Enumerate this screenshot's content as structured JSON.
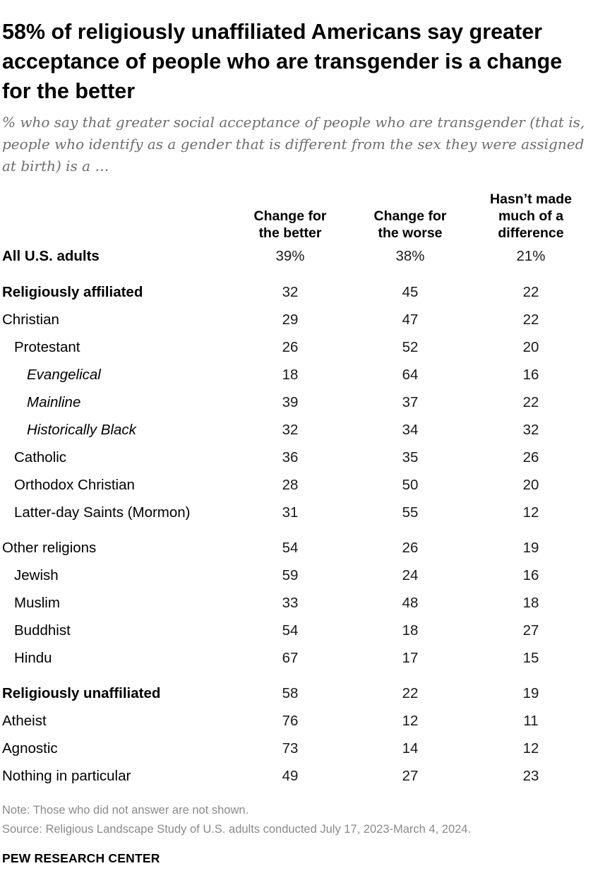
{
  "title": "58% of religiously unaffiliated Americans say greater acceptance of people who are transgender is a change for the better",
  "subtitle": "% who say that greater social acceptance of people who are transgender (that is, people who identify as a gender that is different from the sex they were assigned at birth) is a …",
  "chart_data": {
    "type": "table",
    "columns": [
      [
        "Change for",
        "the better"
      ],
      [
        "Change for",
        "the worse"
      ],
      [
        "Hasn’t made",
        "much of a",
        "difference"
      ]
    ],
    "rows": [
      {
        "label": "All U.S. adults",
        "style": "bold",
        "indent": 0,
        "values": [
          "39%",
          "38%",
          "21%"
        ]
      },
      {
        "label": "Religiously affiliated",
        "style": "bold",
        "indent": 0,
        "values": [
          "32",
          "45",
          "22"
        ]
      },
      {
        "label": "Christian",
        "style": "normal",
        "indent": 0,
        "values": [
          "29",
          "47",
          "22"
        ]
      },
      {
        "label": "Protestant",
        "style": "normal",
        "indent": 1,
        "values": [
          "26",
          "52",
          "20"
        ]
      },
      {
        "label": "Evangelical",
        "style": "italic",
        "indent": 2,
        "values": [
          "18",
          "64",
          "16"
        ]
      },
      {
        "label": "Mainline",
        "style": "italic",
        "indent": 2,
        "values": [
          "39",
          "37",
          "22"
        ]
      },
      {
        "label": "Historically Black",
        "style": "italic",
        "indent": 2,
        "values": [
          "32",
          "34",
          "32"
        ]
      },
      {
        "label": "Catholic",
        "style": "normal",
        "indent": 1,
        "values": [
          "36",
          "35",
          "26"
        ]
      },
      {
        "label": "Orthodox Christian",
        "style": "normal",
        "indent": 1,
        "values": [
          "28",
          "50",
          "20"
        ]
      },
      {
        "label": "Latter-day Saints (Mormon)",
        "style": "normal",
        "indent": 1,
        "values": [
          "31",
          "55",
          "12"
        ]
      },
      {
        "label": "Other religions",
        "style": "normal",
        "indent": 0,
        "values": [
          "54",
          "26",
          "19"
        ]
      },
      {
        "label": "Jewish",
        "style": "normal",
        "indent": 1,
        "values": [
          "59",
          "24",
          "16"
        ]
      },
      {
        "label": "Muslim",
        "style": "normal",
        "indent": 1,
        "values": [
          "33",
          "48",
          "18"
        ]
      },
      {
        "label": "Buddhist",
        "style": "normal",
        "indent": 1,
        "values": [
          "54",
          "18",
          "27"
        ]
      },
      {
        "label": "Hindu",
        "style": "normal",
        "indent": 1,
        "values": [
          "67",
          "17",
          "15"
        ]
      },
      {
        "label": "Religiously unaffiliated",
        "style": "bold",
        "indent": 0,
        "values": [
          "58",
          "22",
          "19"
        ]
      },
      {
        "label": "Atheist",
        "style": "normal",
        "indent": 0,
        "values": [
          "76",
          "12",
          "11"
        ]
      },
      {
        "label": "Agnostic",
        "style": "normal",
        "indent": 0,
        "values": [
          "73",
          "14",
          "12"
        ]
      },
      {
        "label": "Nothing in particular",
        "style": "normal",
        "indent": 0,
        "values": [
          "49",
          "27",
          "23"
        ]
      }
    ]
  },
  "note": "Note: Those who did not answer are not shown.",
  "source": "Source: Religious Landscape Study of U.S. adults conducted July 17, 2023-March 4, 2024.",
  "brand": "PEW RESEARCH CENTER"
}
